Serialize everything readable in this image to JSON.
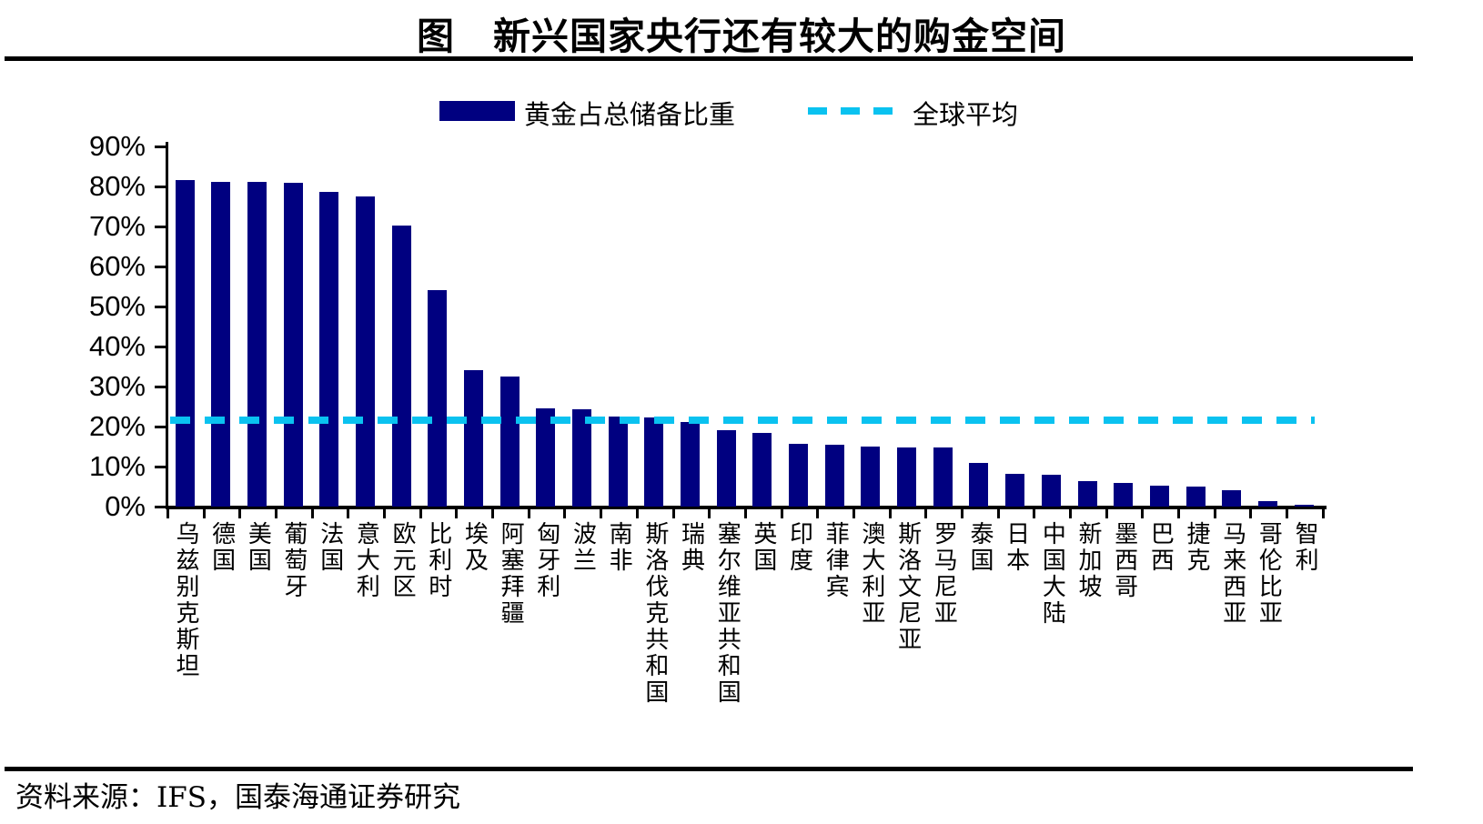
{
  "title": "图　新兴国家央行还有较大的购金空间",
  "legend": {
    "bar_label": "黄金占总储备比重",
    "line_label": "全球平均"
  },
  "source": "资料来源：IFS，国泰海通证券研究",
  "colors": {
    "bar": "#000080",
    "average_line": "#0AC2F0",
    "axis": "#000000",
    "background": "#FFFFFF"
  },
  "chart_data": {
    "type": "bar",
    "title": "新兴国家央行还有较大的购金空间",
    "series_label": "黄金占总储备比重",
    "categories": [
      "乌兹别克斯坦",
      "德国",
      "美国",
      "葡萄牙",
      "法国",
      "意大利",
      "欧元区",
      "比利时",
      "埃及",
      "阿塞拜疆",
      "匈牙利",
      "波兰",
      "南非",
      "斯洛伐克共和国",
      "瑞典",
      "塞尔维亚共和国",
      "英国",
      "印度",
      "菲律宾",
      "澳大利亚",
      "斯洛文尼亚",
      "罗马尼亚",
      "泰国",
      "日本",
      "中国大陆",
      "新加坡",
      "墨西哥",
      "巴西",
      "捷克",
      "马来西亚",
      "哥伦比亚",
      "智利"
    ],
    "values": [
      81.5,
      81.2,
      81.1,
      80.9,
      78.6,
      77.6,
      70.2,
      54.1,
      34.0,
      32.6,
      24.5,
      24.4,
      22.5,
      22.3,
      21.2,
      19.1,
      18.5,
      15.6,
      15.4,
      14.9,
      14.8,
      14.7,
      10.9,
      8.1,
      8.0,
      6.3,
      6.0,
      5.3,
      5.1,
      4.2,
      1.3,
      0.5
    ],
    "average_line": {
      "label": "全球平均",
      "value": 21.5
    },
    "unit": "%",
    "ylim": [
      0,
      90
    ],
    "ytick_step": 10,
    "ytick_labels": [
      "0%",
      "10%",
      "20%",
      "30%",
      "40%",
      "50%",
      "60%",
      "70%",
      "80%",
      "90%"
    ],
    "legend_position": "top",
    "grid": false
  }
}
